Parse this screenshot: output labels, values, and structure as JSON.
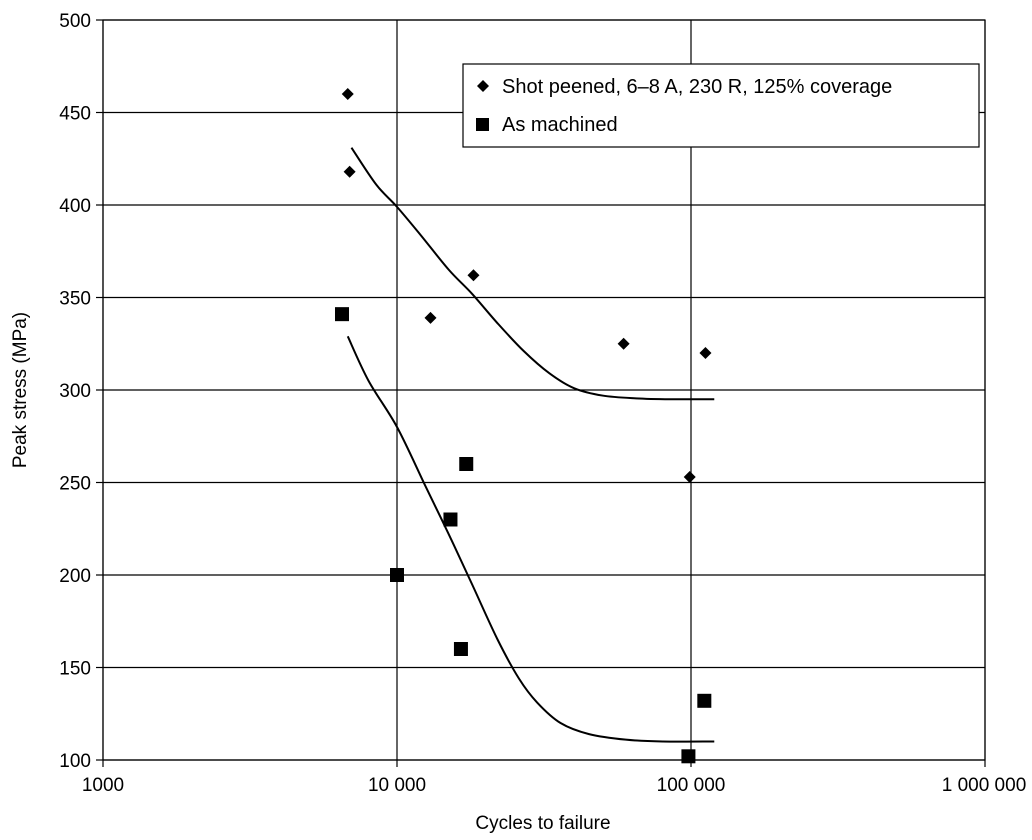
{
  "chart_data": {
    "type": "scatter",
    "title": "",
    "xlabel": "Cycles to failure",
    "ylabel": "Peak stress (MPa)",
    "xscale": "log",
    "xlim": [
      1000,
      1000000
    ],
    "ylim": [
      100,
      500
    ],
    "grid": true,
    "legend_position": "top-right",
    "x_ticks": [
      {
        "value": 1000,
        "label": "1000"
      },
      {
        "value": 10000,
        "label": "10 000"
      },
      {
        "value": 100000,
        "label": "100 000"
      },
      {
        "value": 1000000,
        "label": "1 000 000"
      }
    ],
    "y_ticks": [
      {
        "value": 100,
        "label": "100"
      },
      {
        "value": 150,
        "label": "150"
      },
      {
        "value": 200,
        "label": "200"
      },
      {
        "value": 250,
        "label": "250"
      },
      {
        "value": 300,
        "label": "300"
      },
      {
        "value": 350,
        "label": "350"
      },
      {
        "value": 400,
        "label": "400"
      },
      {
        "value": 450,
        "label": "450"
      },
      {
        "value": 500,
        "label": "500"
      }
    ],
    "series": [
      {
        "name": "Shot peened, 6–8 A, 230 R, 125% coverage",
        "marker": "diamond",
        "color": "#000000",
        "points": [
          {
            "x": 6800,
            "y": 460
          },
          {
            "x": 6900,
            "y": 418
          },
          {
            "x": 13000,
            "y": 339
          },
          {
            "x": 18200,
            "y": 362
          },
          {
            "x": 59000,
            "y": 325
          },
          {
            "x": 99000,
            "y": 253
          },
          {
            "x": 112000,
            "y": 320
          }
        ],
        "trendline": [
          {
            "x": 7000,
            "y": 431
          },
          {
            "x": 8500,
            "y": 411
          },
          {
            "x": 10000,
            "y": 399
          },
          {
            "x": 12000,
            "y": 384
          },
          {
            "x": 15000,
            "y": 365
          },
          {
            "x": 18000,
            "y": 352
          },
          {
            "x": 22000,
            "y": 336
          },
          {
            "x": 27000,
            "y": 321
          },
          {
            "x": 33000,
            "y": 309
          },
          {
            "x": 40000,
            "y": 301
          },
          {
            "x": 50000,
            "y": 297
          },
          {
            "x": 65000,
            "y": 295.5
          },
          {
            "x": 85000,
            "y": 295
          },
          {
            "x": 120000,
            "y": 295
          }
        ]
      },
      {
        "name": "As machined",
        "marker": "square",
        "color": "#000000",
        "points": [
          {
            "x": 6500,
            "y": 341
          },
          {
            "x": 10000,
            "y": 200
          },
          {
            "x": 15200,
            "y": 230
          },
          {
            "x": 16500,
            "y": 160
          },
          {
            "x": 17200,
            "y": 260
          },
          {
            "x": 98000,
            "y": 102
          },
          {
            "x": 111000,
            "y": 132
          }
        ]
      }
    ],
    "trend_curves": [
      {
        "series": 0,
        "points": [
          {
            "x": 7000,
            "y": 431
          },
          {
            "x": 8500,
            "y": 411
          },
          {
            "x": 10000,
            "y": 399
          },
          {
            "x": 12000,
            "y": 384
          },
          {
            "x": 15000,
            "y": 365
          },
          {
            "x": 18000,
            "y": 352
          },
          {
            "x": 22000,
            "y": 336
          },
          {
            "x": 27000,
            "y": 321
          },
          {
            "x": 33000,
            "y": 309
          },
          {
            "x": 40000,
            "y": 301
          },
          {
            "x": 50000,
            "y": 297
          },
          {
            "x": 65000,
            "y": 295.5
          },
          {
            "x": 85000,
            "y": 295
          },
          {
            "x": 120000,
            "y": 295
          }
        ]
      },
      {
        "series": 1,
        "points": [
          {
            "x": 6800,
            "y": 329
          },
          {
            "x": 8000,
            "y": 305
          },
          {
            "x": 10000,
            "y": 280
          },
          {
            "x": 12500,
            "y": 248
          },
          {
            "x": 15000,
            "y": 222
          },
          {
            "x": 18000,
            "y": 195
          },
          {
            "x": 22000,
            "y": 165
          },
          {
            "x": 26000,
            "y": 144
          },
          {
            "x": 30000,
            "y": 131
          },
          {
            "x": 36000,
            "y": 120
          },
          {
            "x": 45000,
            "y": 114
          },
          {
            "x": 60000,
            "y": 111
          },
          {
            "x": 80000,
            "y": 110
          },
          {
            "x": 120000,
            "y": 110
          }
        ]
      }
    ]
  }
}
